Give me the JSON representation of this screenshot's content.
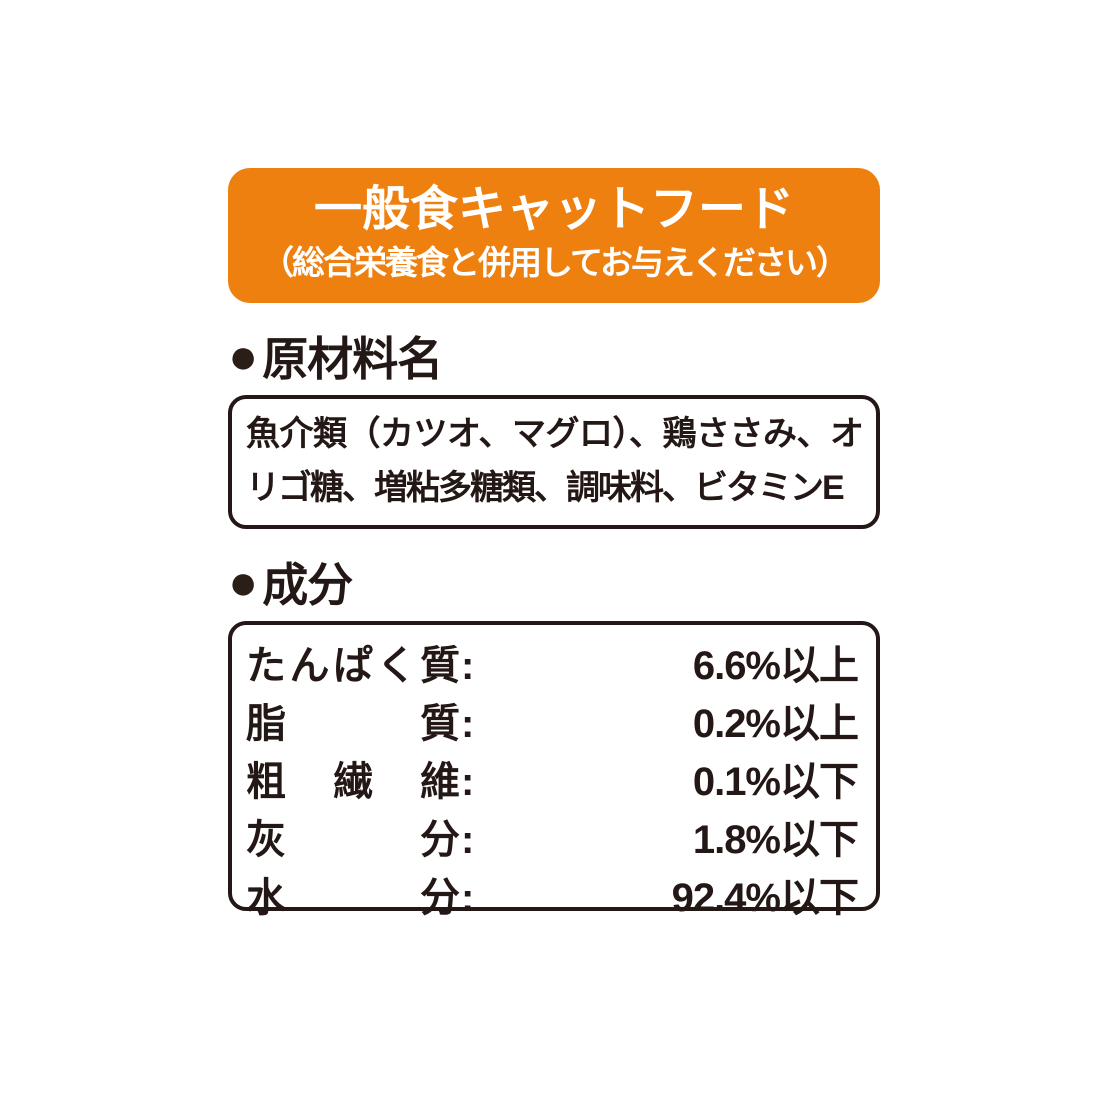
{
  "banner": {
    "title": "一般食キャットフード",
    "subtitle": "（総合栄養食と併用してお与えください）"
  },
  "ingredients": {
    "bullet": "●",
    "heading": "原材料名",
    "text": "魚介類（カツオ、マグロ）、鶏ささみ、オリゴ糖、増粘多糖類、調味料、ビタミンE"
  },
  "components": {
    "bullet": "●",
    "heading": "成分",
    "colon": ":",
    "rows": [
      {
        "label": "たんぱく質",
        "value": "6.6%以上"
      },
      {
        "label": "脂質",
        "value": "0.2%以上"
      },
      {
        "label": "粗繊維",
        "value": "0.1%以下"
      },
      {
        "label": "灰分",
        "value": "1.8%以下"
      },
      {
        "label": "水分",
        "value": "92.4%以下"
      }
    ]
  },
  "colors": {
    "banner_background": "#EE8010",
    "banner_text": "#FFFFFF",
    "body_text": "#231815",
    "page_background": "#FFFFFF"
  }
}
